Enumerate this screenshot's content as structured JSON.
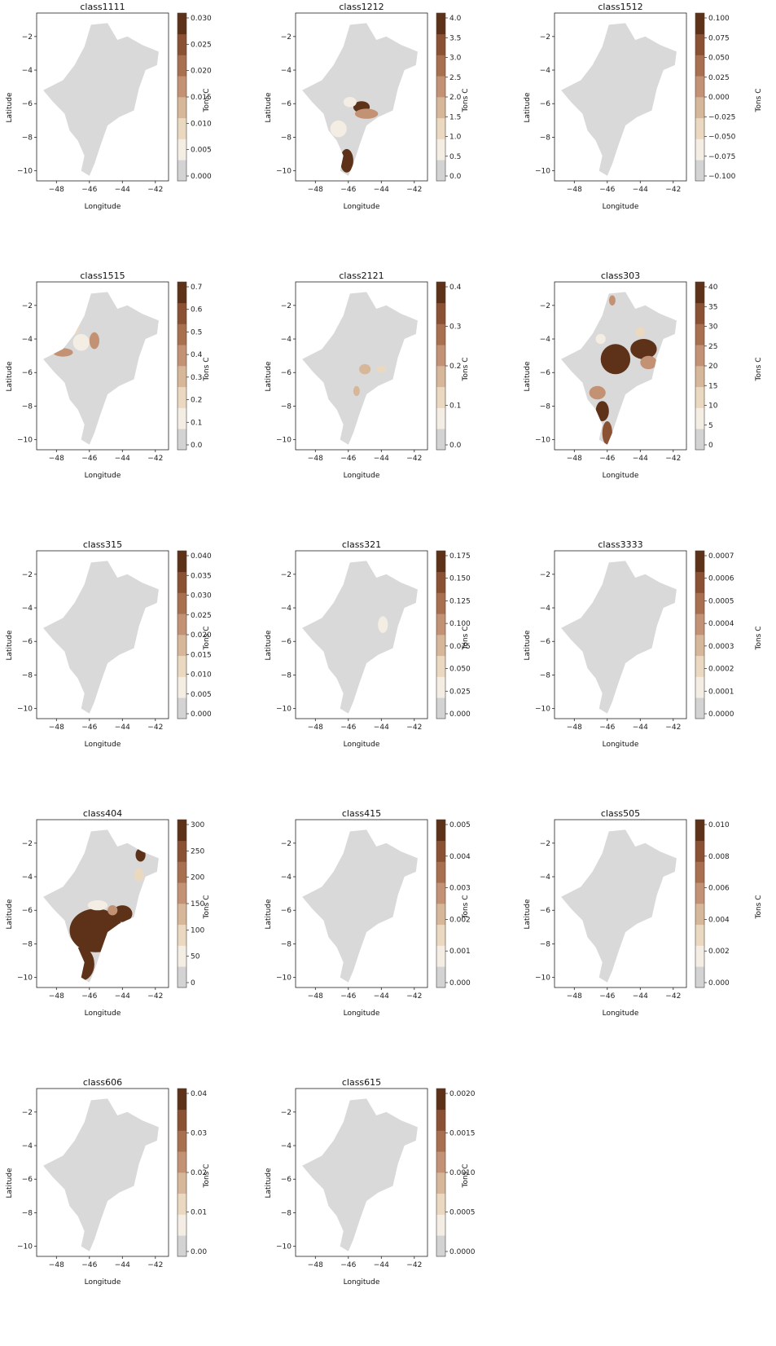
{
  "map_labels": {
    "xlabel": "Longitude",
    "ylabel": "Latitude",
    "colorbar_label": "Tons C"
  },
  "axis_ticks": {
    "x": [
      "−48",
      "−46",
      "−44",
      "−42"
    ],
    "y": [
      "−2",
      "−4",
      "−6",
      "−8",
      "−10"
    ]
  },
  "colors": {
    "land": "#d9d9d9",
    "ramp": [
      "#d3d3d3",
      "#f4ede4",
      "#ead8c0",
      "#d6b79a",
      "#c39275",
      "#a8704f",
      "#8a5133",
      "#5e3218"
    ]
  },
  "panels": [
    {
      "title": "class1111",
      "cbar_ticks": [
        "0.000",
        "0.005",
        "0.010",
        "0.015",
        "0.020",
        "0.025",
        "0.030"
      ],
      "highlighted": false
    },
    {
      "title": "class1212",
      "cbar_ticks": [
        "0.0",
        "0.5",
        "1.0",
        "1.5",
        "2.0",
        "2.5",
        "3.0",
        "3.5",
        "4.0"
      ],
      "highlighted": true
    },
    {
      "title": "class1512",
      "cbar_ticks": [
        "−0.100",
        "−0.075",
        "−0.050",
        "−0.025",
        "0.000",
        "0.025",
        "0.050",
        "0.075",
        "0.100"
      ],
      "highlighted": false
    },
    {
      "title": "class1515",
      "cbar_ticks": [
        "0.0",
        "0.1",
        "0.2",
        "0.3",
        "0.4",
        "0.5",
        "0.6",
        "0.7"
      ],
      "highlighted": true
    },
    {
      "title": "class2121",
      "cbar_ticks": [
        "0.0",
        "0.1",
        "0.2",
        "0.3",
        "0.4"
      ],
      "highlighted": true
    },
    {
      "title": "class303",
      "cbar_ticks": [
        "0",
        "5",
        "10",
        "15",
        "20",
        "25",
        "30",
        "35",
        "40"
      ],
      "highlighted": true
    },
    {
      "title": "class315",
      "cbar_ticks": [
        "0.000",
        "0.005",
        "0.010",
        "0.015",
        "0.020",
        "0.025",
        "0.030",
        "0.035",
        "0.040"
      ],
      "highlighted": false
    },
    {
      "title": "class321",
      "cbar_ticks": [
        "0.000",
        "0.025",
        "0.050",
        "0.075",
        "0.100",
        "0.125",
        "0.150",
        "0.175"
      ],
      "highlighted": true
    },
    {
      "title": "class3333",
      "cbar_ticks": [
        "0.0000",
        "0.0001",
        "0.0002",
        "0.0003",
        "0.0004",
        "0.0005",
        "0.0006",
        "0.0007"
      ],
      "highlighted": false
    },
    {
      "title": "class404",
      "cbar_ticks": [
        "0",
        "50",
        "100",
        "150",
        "200",
        "250",
        "300"
      ],
      "highlighted": true
    },
    {
      "title": "class415",
      "cbar_ticks": [
        "0.000",
        "0.001",
        "0.002",
        "0.003",
        "0.004",
        "0.005"
      ],
      "highlighted": false
    },
    {
      "title": "class505",
      "cbar_ticks": [
        "0.000",
        "0.002",
        "0.004",
        "0.006",
        "0.008",
        "0.010"
      ],
      "highlighted": false
    },
    {
      "title": "class606",
      "cbar_ticks": [
        "0.00",
        "0.01",
        "0.02",
        "0.03",
        "0.04"
      ],
      "highlighted": false
    },
    {
      "title": "class615",
      "cbar_ticks": [
        "0.0000",
        "0.0005",
        "0.0010",
        "0.0015",
        "0.0020"
      ],
      "highlighted": false
    }
  ]
}
